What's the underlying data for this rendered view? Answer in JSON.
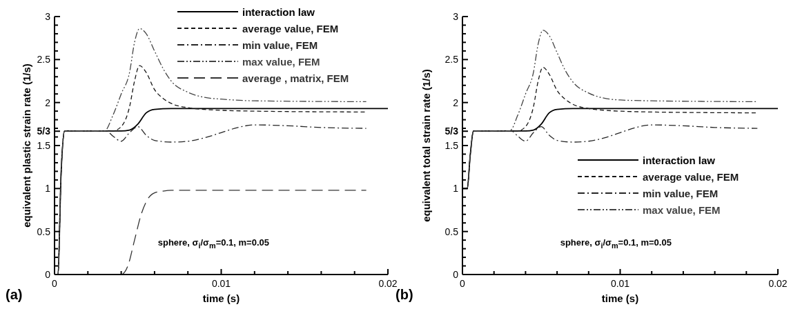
{
  "chart_data": [
    {
      "type": "line",
      "title": "(a)",
      "xlabel": "time (s)",
      "ylabel": "equivalent plastic strain rate (1/s)",
      "xlim": [
        0,
        0.02
      ],
      "ylim": [
        0,
        3
      ],
      "xticks": [
        0,
        {
          "value": 0.002,
          "label": null
        },
        {
          "value": 0.004,
          "label": null
        },
        {
          "value": 0.006,
          "label": null
        },
        {
          "value": 0.008,
          "label": null
        },
        0.01,
        {
          "value": 0.012,
          "label": null
        },
        {
          "value": 0.014,
          "label": null
        },
        {
          "value": 0.016,
          "label": null
        },
        {
          "value": 0.018,
          "label": null
        },
        0.02
      ],
      "yticks": [
        0,
        {
          "value": 0.1,
          "label": null
        },
        {
          "value": 0.2,
          "label": null
        },
        {
          "value": 0.3,
          "label": null
        },
        {
          "value": 0.4,
          "label": null
        },
        0.5,
        {
          "value": 0.6,
          "label": null
        },
        {
          "value": 0.7,
          "label": null
        },
        {
          "value": 0.8,
          "label": null
        },
        {
          "value": 0.9,
          "label": null
        },
        1,
        {
          "value": 1.1,
          "label": null
        },
        {
          "value": 1.2,
          "label": null
        },
        {
          "value": 1.3,
          "label": null
        },
        {
          "value": 1.4,
          "label": null
        },
        1.5,
        {
          "value": 1.6,
          "label": null
        },
        {
          "value": 1.6667,
          "label": "5/3"
        },
        {
          "value": 1.7,
          "label": null
        },
        {
          "value": 1.8,
          "label": null
        },
        {
          "value": 1.9,
          "label": null
        },
        2,
        {
          "value": 2.1,
          "label": null
        },
        {
          "value": 2.2,
          "label": null
        },
        {
          "value": 2.3,
          "label": null
        },
        {
          "value": 2.4,
          "label": null
        },
        2.5,
        {
          "value": 2.6,
          "label": null
        },
        {
          "value": 2.7,
          "label": null
        },
        {
          "value": 2.8,
          "label": null
        },
        {
          "value": 2.9,
          "label": null
        },
        3
      ],
      "legend": "top right",
      "grid": false,
      "marker": "none",
      "annotations": [
        "sphere, σ$_{i}$/σ$_{m}$=0.1, m=0.05"
      ],
      "series": [
        {
          "name": "interaction law",
          "color": "#000000",
          "line_style": "solid",
          "x": [
            0,
            0.0002,
            0.0004,
            0.0006,
            0.001,
            0.004,
            0.0045,
            0.005,
            0.0055,
            0.006,
            0.007,
            0.02
          ],
          "values": [
            0,
            0,
            1.2,
            1.67,
            1.67,
            1.67,
            1.68,
            1.75,
            1.88,
            1.92,
            1.93,
            1.93
          ]
        },
        {
          "name": "average value, FEM",
          "color": "#161616",
          "line_style": "dashed",
          "x": [
            0,
            0.0002,
            0.0004,
            0.0006,
            0.001,
            0.0035,
            0.004,
            0.0045,
            0.0048,
            0.0051,
            0.0055,
            0.006,
            0.0065,
            0.007,
            0.008,
            0.009,
            0.012,
            0.0187
          ],
          "values": [
            0,
            0,
            1.2,
            1.67,
            1.67,
            1.67,
            1.72,
            1.95,
            2.25,
            2.43,
            2.35,
            2.15,
            2.05,
            1.99,
            1.94,
            1.92,
            1.9,
            1.89
          ]
        },
        {
          "name": "min value, FEM",
          "color": "#262626",
          "line_style": "dashdot",
          "x": [
            0,
            0.0002,
            0.0004,
            0.0006,
            0.001,
            0.0031,
            0.0035,
            0.004,
            0.0045,
            0.005,
            0.0055,
            0.006,
            0.007,
            0.008,
            0.009,
            0.01,
            0.011,
            0.012,
            0.014,
            0.016,
            0.0187
          ],
          "values": [
            0,
            0,
            1.2,
            1.67,
            1.67,
            1.67,
            1.61,
            1.55,
            1.65,
            1.72,
            1.62,
            1.56,
            1.54,
            1.55,
            1.59,
            1.65,
            1.71,
            1.74,
            1.73,
            1.71,
            1.7
          ]
        },
        {
          "name": "max value, FEM",
          "color": "#444444",
          "line_style": "dashdotdot",
          "x": [
            0,
            0.0002,
            0.0004,
            0.0006,
            0.001,
            0.003,
            0.0035,
            0.004,
            0.0045,
            0.0048,
            0.0051,
            0.0055,
            0.006,
            0.0065,
            0.007,
            0.008,
            0.009,
            0.01,
            0.012,
            0.0187
          ],
          "values": [
            0,
            0,
            1.2,
            1.67,
            1.67,
            1.67,
            1.85,
            2.1,
            2.35,
            2.7,
            2.86,
            2.8,
            2.6,
            2.4,
            2.25,
            2.12,
            2.06,
            2.04,
            2.02,
            2.01
          ]
        },
        {
          "name": "average , matrix, FEM",
          "color": "#333333",
          "line_style": "longdash",
          "x": [
            0,
            0.004,
            0.0044,
            0.0048,
            0.0052,
            0.0056,
            0.006,
            0.0065,
            0.007,
            0.0187
          ],
          "values": [
            0,
            0,
            0.1,
            0.4,
            0.7,
            0.88,
            0.95,
            0.97,
            0.98,
            0.98
          ]
        }
      ]
    },
    {
      "type": "line",
      "title": "(b)",
      "xlabel": "time (s)",
      "ylabel": "equivalent total strain rate (1/s)",
      "xlim": [
        0,
        0.02
      ],
      "ylim": [
        0,
        3
      ],
      "xticks": [
        0,
        {
          "value": 0.002,
          "label": null
        },
        {
          "value": 0.004,
          "label": null
        },
        {
          "value": 0.006,
          "label": null
        },
        {
          "value": 0.008,
          "label": null
        },
        0.01,
        {
          "value": 0.012,
          "label": null
        },
        {
          "value": 0.014,
          "label": null
        },
        {
          "value": 0.016,
          "label": null
        },
        {
          "value": 0.018,
          "label": null
        },
        0.02
      ],
      "yticks": [
        0,
        {
          "value": 0.1,
          "label": null
        },
        {
          "value": 0.2,
          "label": null
        },
        {
          "value": 0.3,
          "label": null
        },
        {
          "value": 0.4,
          "label": null
        },
        0.5,
        {
          "value": 0.6,
          "label": null
        },
        {
          "value": 0.7,
          "label": null
        },
        {
          "value": 0.8,
          "label": null
        },
        {
          "value": 0.9,
          "label": null
        },
        1,
        {
          "value": 1.1,
          "label": null
        },
        {
          "value": 1.2,
          "label": null
        },
        {
          "value": 1.3,
          "label": null
        },
        {
          "value": 1.4,
          "label": null
        },
        1.5,
        {
          "value": 1.6,
          "label": null
        },
        {
          "value": 1.6667,
          "label": "5/3"
        },
        {
          "value": 1.7,
          "label": null
        },
        {
          "value": 1.8,
          "label": null
        },
        {
          "value": 1.9,
          "label": null
        },
        2,
        {
          "value": 2.1,
          "label": null
        },
        {
          "value": 2.2,
          "label": null
        },
        {
          "value": 2.3,
          "label": null
        },
        {
          "value": 2.4,
          "label": null
        },
        2.5,
        {
          "value": 2.6,
          "label": null
        },
        {
          "value": 2.7,
          "label": null
        },
        {
          "value": 2.8,
          "label": null
        },
        {
          "value": 2.9,
          "label": null
        },
        3
      ],
      "legend": "right",
      "grid": false,
      "marker": "none",
      "annotations": [
        "sphere, σ$_{i}$/σ$_{m}$=0.1, m=0.05"
      ],
      "series": [
        {
          "name": "interaction law",
          "color": "#000000",
          "line_style": "solid",
          "x": [
            0,
            0.0003,
            0.0005,
            0.0007,
            0.001,
            0.004,
            0.0045,
            0.005,
            0.0055,
            0.006,
            0.007,
            0.02
          ],
          "values": [
            1,
            1,
            1.4,
            1.67,
            1.67,
            1.67,
            1.68,
            1.75,
            1.88,
            1.92,
            1.93,
            1.93
          ]
        },
        {
          "name": "average value, FEM",
          "color": "#161616",
          "line_style": "dashed",
          "x": [
            0,
            0.0003,
            0.0005,
            0.0007,
            0.001,
            0.0035,
            0.004,
            0.0045,
            0.0048,
            0.0051,
            0.0055,
            0.006,
            0.0065,
            0.007,
            0.008,
            0.009,
            0.012,
            0.0187
          ],
          "values": [
            1,
            1,
            1.4,
            1.67,
            1.67,
            1.67,
            1.72,
            1.95,
            2.25,
            2.41,
            2.33,
            2.14,
            2.04,
            1.98,
            1.93,
            1.91,
            1.89,
            1.88
          ]
        },
        {
          "name": "min value, FEM",
          "color": "#262626",
          "line_style": "dashdot",
          "x": [
            0,
            0.0003,
            0.0005,
            0.0007,
            0.001,
            0.0031,
            0.0035,
            0.004,
            0.0045,
            0.005,
            0.0055,
            0.006,
            0.007,
            0.008,
            0.009,
            0.01,
            0.011,
            0.012,
            0.014,
            0.016,
            0.0187
          ],
          "values": [
            1,
            1,
            1.4,
            1.67,
            1.67,
            1.67,
            1.61,
            1.55,
            1.65,
            1.72,
            1.62,
            1.56,
            1.54,
            1.55,
            1.59,
            1.65,
            1.71,
            1.74,
            1.73,
            1.71,
            1.7
          ]
        },
        {
          "name": "max value, FEM",
          "color": "#444444",
          "line_style": "dashdotdot",
          "x": [
            0,
            0.0003,
            0.0005,
            0.0007,
            0.001,
            0.003,
            0.0035,
            0.004,
            0.0045,
            0.0048,
            0.0051,
            0.0055,
            0.006,
            0.0065,
            0.007,
            0.008,
            0.009,
            0.01,
            0.012,
            0.0187
          ],
          "values": [
            1,
            1,
            1.4,
            1.67,
            1.67,
            1.67,
            1.85,
            2.1,
            2.35,
            2.68,
            2.84,
            2.78,
            2.58,
            2.38,
            2.24,
            2.11,
            2.05,
            2.03,
            2.02,
            2.01
          ]
        }
      ]
    }
  ]
}
